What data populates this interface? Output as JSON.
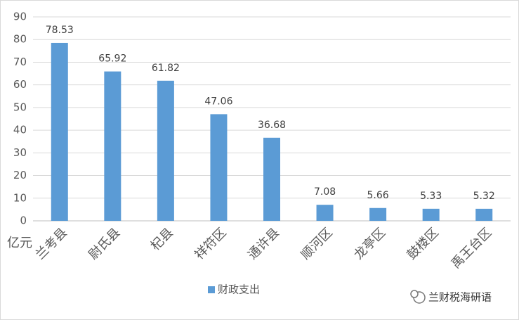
{
  "chart_data": {
    "type": "bar",
    "y_label": "亿元",
    "categories": [
      "兰考县",
      "尉氏县",
      "杞县",
      "祥符区",
      "通许县",
      "顺河区",
      "龙亭区",
      "鼓楼区",
      "禹王台区"
    ],
    "series": [
      {
        "name": "财政支出",
        "color": "#5b9bd5",
        "values": [
          78.53,
          65.92,
          61.82,
          47.06,
          36.68,
          7.08,
          5.66,
          5.33,
          5.32
        ]
      }
    ],
    "ylim": [
      0,
      90
    ],
    "yticks": [
      0,
      10,
      20,
      30,
      40,
      50,
      60,
      70,
      80,
      90
    ],
    "grid": true,
    "legend": "bottom",
    "watermark": "兰财税海研语"
  }
}
